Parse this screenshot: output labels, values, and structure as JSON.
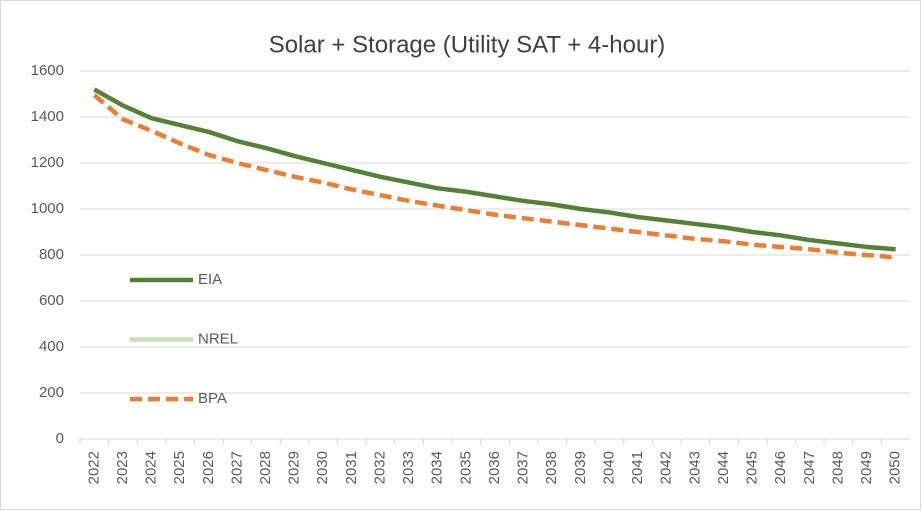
{
  "chart_data": {
    "type": "line",
    "title": "Solar + Storage (Utility SAT + 4-hour)",
    "categories": [
      "2022",
      "2023",
      "2024",
      "2025",
      "2026",
      "2027",
      "2028",
      "2029",
      "2030",
      "2031",
      "2032",
      "2033",
      "2034",
      "2035",
      "2036",
      "2037",
      "2038",
      "2039",
      "2040",
      "2041",
      "2042",
      "2043",
      "2044",
      "2045",
      "2046",
      "2047",
      "2048",
      "2049",
      "2050"
    ],
    "series": [
      {
        "name": "EIA",
        "color": "#548235",
        "dash": false,
        "values": [
          1520,
          1450,
          1395,
          1365,
          1335,
          1295,
          1265,
          1230,
          1200,
          1170,
          1140,
          1115,
          1090,
          1075,
          1055,
          1035,
          1020,
          1000,
          985,
          965,
          950,
          935,
          920,
          900,
          885,
          865,
          850,
          835,
          825
        ]
      },
      {
        "name": "NREL",
        "color": "#c5e0b4",
        "dash": false,
        "values": [
          null,
          null,
          null,
          null,
          null,
          null,
          null,
          null,
          null,
          null,
          null,
          null,
          null,
          null,
          null,
          null,
          null,
          null,
          null,
          null,
          null,
          null,
          null,
          null,
          null,
          null,
          null,
          null,
          null
        ]
      },
      {
        "name": "BPA",
        "color": "#ed7d31",
        "dash": true,
        "values": [
          1495,
          1390,
          1340,
          1285,
          1235,
          1200,
          1170,
          1140,
          1115,
          1085,
          1060,
          1035,
          1015,
          995,
          975,
          960,
          945,
          930,
          915,
          900,
          885,
          870,
          860,
          845,
          835,
          825,
          810,
          800,
          790
        ]
      }
    ],
    "ylim": [
      0,
      1600
    ],
    "yticks": [
      0,
      200,
      400,
      600,
      800,
      1000,
      1200,
      1400,
      1600
    ],
    "grid": true,
    "legend": "left"
  }
}
